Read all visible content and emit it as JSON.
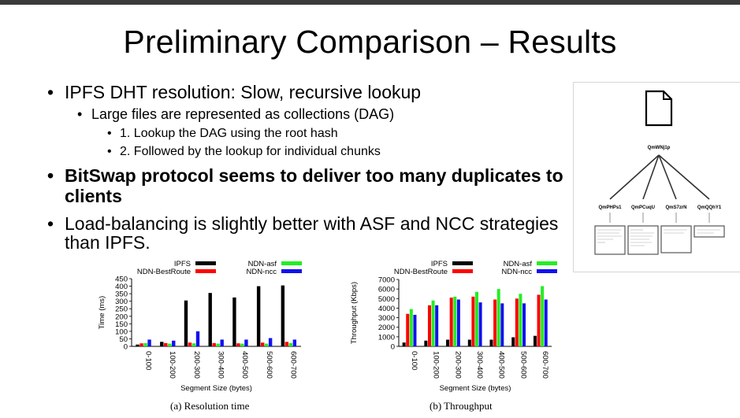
{
  "slide": {
    "title": "Preliminary Comparison – Results",
    "bullets": [
      {
        "text": "IPFS DHT resolution: Slow, recursive lookup"
      },
      {
        "text": "Large files are represented as collections (DAG)"
      },
      {
        "text": "1. Lookup the DAG using the root hash"
      },
      {
        "text": "2. Followed by the lookup for individual chunks"
      },
      {
        "text": "BitSwap protocol seems to deliver too many duplicates to",
        "cont": "clients"
      },
      {
        "text": "Load-balancing is slightly better with ASF and NCC strategies",
        "cont": "than IPFS."
      }
    ],
    "bullet_glyph": "•"
  },
  "dag": {
    "root": "QmWNj1p",
    "children": [
      "QmPHPs1",
      "QmPCuqU",
      "QmS7zrN",
      "QmQQhY1"
    ]
  },
  "colors": {
    "IPFS": "#000000",
    "NDN-BestRoute": "#ff0000",
    "NDN-asf": "#22ee22",
    "NDN-ncc": "#1111ee"
  },
  "chart_data": [
    {
      "type": "bar",
      "caption": "(a)  Resolution time",
      "xlabel": "Segment Size (bytes)",
      "ylabel": "Time (ms)",
      "ylim": [
        0,
        450
      ],
      "yticks": [
        0,
        50,
        100,
        150,
        200,
        250,
        300,
        350,
        400,
        450
      ],
      "categories": [
        "0-100",
        "100-200",
        "200-300",
        "300-400",
        "400-500",
        "500-600",
        "600-700"
      ],
      "legend": "top",
      "series": [
        {
          "name": "IPFS",
          "values": [
            12,
            30,
            305,
            355,
            325,
            400,
            405
          ]
        },
        {
          "name": "NDN-BestRoute",
          "values": [
            20,
            22,
            25,
            22,
            20,
            25,
            30
          ]
        },
        {
          "name": "NDN-asf",
          "values": [
            22,
            18,
            20,
            18,
            18,
            18,
            22
          ]
        },
        {
          "name": "NDN-ncc",
          "values": [
            45,
            38,
            100,
            45,
            45,
            55,
            45
          ]
        }
      ]
    },
    {
      "type": "bar",
      "caption": "(b)  Throughput",
      "xlabel": "Segment Size (bytes)",
      "ylabel": "Throughput (Kbps)",
      "ylim": [
        0,
        7000
      ],
      "yticks": [
        0,
        1000,
        2000,
        3000,
        4000,
        5000,
        6000,
        7000
      ],
      "categories": [
        "0-100",
        "100-200",
        "200-300",
        "300-400",
        "400-500",
        "500-600",
        "600-700"
      ],
      "legend": "top",
      "series": [
        {
          "name": "IPFS",
          "values": [
            400,
            600,
            700,
            700,
            700,
            950,
            1100
          ]
        },
        {
          "name": "NDN-BestRoute",
          "values": [
            3400,
            4300,
            5100,
            5200,
            4900,
            5000,
            5400
          ]
        },
        {
          "name": "NDN-asf",
          "values": [
            3900,
            4800,
            5200,
            5700,
            6000,
            5500,
            6300
          ]
        },
        {
          "name": "NDN-ncc",
          "values": [
            3300,
            4300,
            4900,
            4600,
            4500,
            4500,
            4900
          ]
        }
      ]
    }
  ]
}
